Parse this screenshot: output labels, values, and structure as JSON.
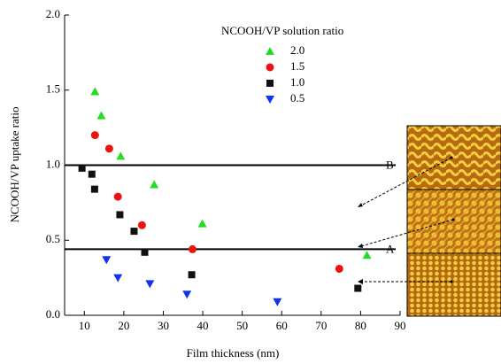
{
  "chart_data": {
    "type": "scatter",
    "x_label": "Film thickness (nm)",
    "y_label": "NCOOH/VP uptake ratio",
    "legend_title": "NCOOH/VP solution ratio",
    "xlim": [
      5,
      90
    ],
    "ylim": [
      0,
      2.0
    ],
    "xticks": [
      10,
      20,
      30,
      40,
      50,
      60,
      70,
      80,
      90
    ],
    "yticks": [
      {
        "value": 0,
        "label": "0.0"
      },
      {
        "value": 0.5,
        "label": "0.5"
      },
      {
        "value": 1.0,
        "label": "1.0"
      },
      {
        "value": 1.5,
        "label": "1.5"
      },
      {
        "value": 2.0,
        "label": "2.0"
      }
    ],
    "hlines": [
      {
        "value": 1.0,
        "label": "B"
      },
      {
        "value": 0.44,
        "label": "A"
      }
    ],
    "series": [
      {
        "name": "2.0",
        "color": "#22dd22",
        "marker": "triangle-up",
        "x": [
          12.7,
          14.3,
          19.2,
          27.7,
          39.9,
          81.6
        ],
        "values": [
          1.49,
          1.33,
          1.06,
          0.87,
          0.61,
          0.4
        ]
      },
      {
        "name": "1.5",
        "color": "#ee1111",
        "marker": "circle",
        "x": [
          12.7,
          16.3,
          18.5,
          24.6,
          37.4,
          74.6
        ],
        "values": [
          1.2,
          1.11,
          0.79,
          0.6,
          0.44,
          0.31
        ]
      },
      {
        "name": "1.0",
        "color": "#111111",
        "marker": "square",
        "x": [
          9.4,
          11.9,
          12.6,
          19.0,
          22.6,
          25.3,
          37.2,
          79.3
        ],
        "values": [
          0.98,
          0.94,
          0.84,
          0.67,
          0.56,
          0.42,
          0.27,
          0.18
        ]
      },
      {
        "name": "0.5",
        "color": "#1133ee",
        "marker": "triangle-down",
        "x": [
          15.6,
          18.5,
          26.6,
          36.0,
          58.9
        ],
        "values": [
          0.37,
          0.25,
          0.21,
          0.14,
          0.09
        ]
      }
    ]
  }
}
